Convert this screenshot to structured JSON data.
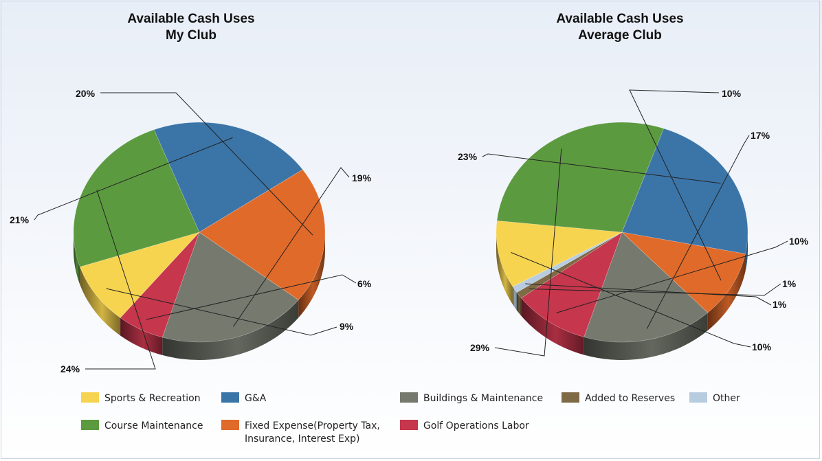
{
  "legend": [
    {
      "label": "Sports & Recreation",
      "color": "#f7d44f"
    },
    {
      "label": "G&A",
      "color": "#3b75a8"
    },
    {
      "label": "Buildings & Maintenance",
      "color": "#75796e"
    },
    {
      "label": "Added to Reserves",
      "color": "#7f6a46"
    },
    {
      "label": "Other",
      "color": "#b8cce0"
    },
    {
      "label": "Course Maintenance",
      "color": "#5c9a40"
    },
    {
      "label": "Fixed Expense(Property Tax, Insurance, Interest Exp)",
      "label_lines": [
        "Fixed Expense(Property Tax,",
        "Insurance, Interest Exp)"
      ],
      "color": "#e06a2a"
    },
    {
      "label": "Golf Operations Labor",
      "color": "#c6364c"
    }
  ],
  "chart_data": [
    {
      "type": "pie",
      "title": "Available Cash Uses My Club",
      "title_lines": [
        "Available Cash Uses",
        "My Club"
      ],
      "slices": [
        {
          "name": "Buildings & Maintenance",
          "value": 19,
          "label": "19%",
          "color": "#75796e"
        },
        {
          "name": "Golf Operations Labor",
          "value": 6,
          "label": "6%",
          "color": "#c6364c"
        },
        {
          "name": "Sports & Recreation",
          "value": 9,
          "label": "9%",
          "color": "#f7d44f"
        },
        {
          "name": "Course Maintenance",
          "value": 24,
          "label": "24%",
          "color": "#5c9a40"
        },
        {
          "name": "G&A",
          "value": 21,
          "label": "21%",
          "color": "#3b75a8"
        },
        {
          "name": "Fixed Expense(Property Tax, Insurance, Interest Exp)",
          "value": 20,
          "label": "20%",
          "color": "#e06a2a"
        }
      ]
    },
    {
      "type": "pie",
      "title": "Available Cash Uses Average Club",
      "title_lines": [
        "Available Cash Uses",
        "Average Club"
      ],
      "slices": [
        {
          "name": "Buildings & Maintenance",
          "value": 17,
          "label": "17%",
          "color": "#75796e"
        },
        {
          "name": "Golf Operations Labor",
          "value": 10,
          "label": "10%",
          "color": "#c6364c"
        },
        {
          "name": "Added to Reserves",
          "value": 1,
          "label": "1%",
          "color": "#7f6a46"
        },
        {
          "name": "Other",
          "value": 1,
          "label": "1%",
          "color": "#b8cce0"
        },
        {
          "name": "Sports & Recreation",
          "value": 10,
          "label": "10%",
          "color": "#f7d44f"
        },
        {
          "name": "Course Maintenance",
          "value": 29,
          "label": "29%",
          "color": "#5c9a40"
        },
        {
          "name": "G&A",
          "value": 23,
          "label": "23%",
          "color": "#3b75a8"
        },
        {
          "name": "Fixed Expense(Property Tax, Insurance, Interest Exp)",
          "value": 10,
          "label": "10%",
          "color": "#e06a2a"
        }
      ]
    }
  ]
}
